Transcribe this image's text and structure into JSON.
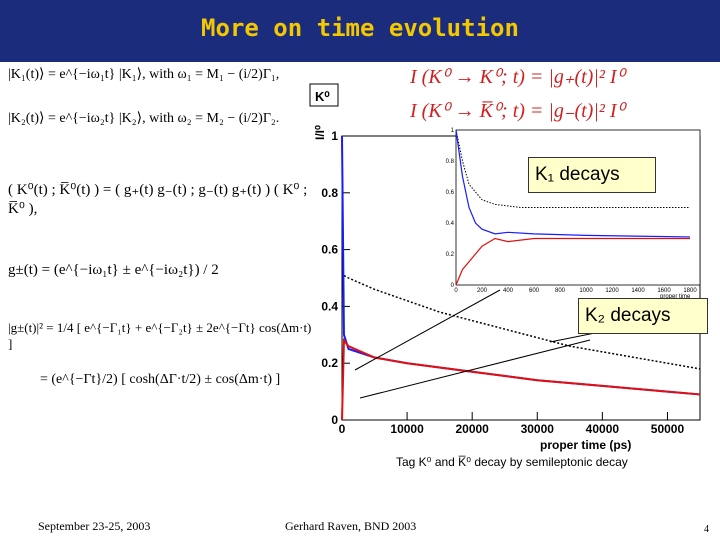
{
  "slide": {
    "title": "More on time evolution",
    "footer_left": "September 23-25, 2003",
    "footer_center": "Gerhard Raven, BND 2003",
    "page_number": "4",
    "caption": "Tag K⁰ and K̅⁰ decay by semileptonic decay",
    "eq_top1": "I (K⁰ → K⁰; t) = |g₊(t)|² I⁰",
    "eq_top2": "I (K⁰ → K̅⁰; t) = |g₋(t)|² I⁰",
    "eq_left": [
      "|K₁(t)⟩ = e^{−iω₁t} |K₁⟩, with ω₁ = M₁ − (i/2)Γ₁,",
      "|K₂(t)⟩ = e^{−iω₂t} |K₂⟩, with ω₂ = M₂ − (i/2)Γ₂.",
      "( K⁰(t) ; K̅⁰(t) ) = ( g₊(t) g₋(t) ; g₋(t) g₊(t) ) ( K⁰ ; K̅⁰ ),",
      "g±(t) = (e^{−iω₁t} ± e^{−iω₂t}) / 2",
      "|g±(t)|² = 1/4 [ e^{−Γ₁t} + e^{−Γ₂t} ± 2e^{−Γt} cos(Δm·t) ]",
      "= (e^{−Γt}/2) [ cosh(ΔΓ·t/2) ± cos(Δm·t) ]"
    ],
    "callout_k1": "K₁ decays",
    "callout_k2": "K₂ decays",
    "colors": {
      "title_bg": "#1c2c7c",
      "title_text": "#f3c800",
      "eq_red": "#d02020"
    }
  },
  "chart_data": {
    "type": "line",
    "legend_label": "K⁰",
    "ylabel": "I/I⁰",
    "xlabel": "proper time (ps)",
    "xlim": [
      0,
      55000
    ],
    "ylim": [
      0,
      1.0
    ],
    "x_ticks": [
      "0",
      "10000",
      "20000",
      "30000",
      "40000",
      "50000"
    ],
    "y_ticks": [
      "0",
      "0.2",
      "0.4",
      "0.6",
      "0.8",
      "1"
    ],
    "series": [
      {
        "color": "#000000",
        "style": "dotted",
        "x": [
          0,
          200,
          1000,
          5000,
          10000,
          15000,
          20000,
          25000,
          30000,
          35000,
          40000,
          45000,
          50000,
          55000
        ],
        "values": [
          1.0,
          0.51,
          0.5,
          0.46,
          0.42,
          0.38,
          0.35,
          0.32,
          0.29,
          0.26,
          0.24,
          0.22,
          0.2,
          0.18
        ]
      },
      {
        "color": "#1a1aff",
        "style": "solid",
        "x": [
          0,
          300,
          1000,
          5000,
          10000,
          20000,
          30000,
          40000,
          50000,
          55000
        ],
        "values": [
          1.0,
          0.3,
          0.25,
          0.22,
          0.2,
          0.17,
          0.14,
          0.12,
          0.1,
          0.09
        ]
      },
      {
        "color": "#e01010",
        "style": "solid",
        "x": [
          0,
          300,
          1000,
          5000,
          10000,
          20000,
          30000,
          40000,
          50000,
          55000
        ],
        "values": [
          0.0,
          0.28,
          0.26,
          0.22,
          0.2,
          0.17,
          0.14,
          0.12,
          0.1,
          0.09
        ]
      }
    ],
    "inset": {
      "xlabel": "proper time",
      "x_ticks": [
        "0",
        "200",
        "400",
        "600",
        "800",
        "1000",
        "1200",
        "1400",
        "1600",
        "1800"
      ],
      "y_ticks": [
        "0",
        "0.2",
        "0.4",
        "0.6",
        "0.8",
        "1"
      ],
      "series": [
        {
          "color": "#000000",
          "style": "dotted",
          "x": [
            0,
            50,
            100,
            200,
            300,
            500,
            1000,
            1800
          ],
          "values": [
            1.0,
            0.8,
            0.65,
            0.55,
            0.52,
            0.5,
            0.5,
            0.5
          ]
        },
        {
          "color": "#1a1aff",
          "style": "solid",
          "x": [
            0,
            50,
            100,
            150,
            200,
            300,
            400,
            600,
            1000,
            1800
          ],
          "values": [
            1.0,
            0.7,
            0.5,
            0.4,
            0.36,
            0.33,
            0.34,
            0.33,
            0.32,
            0.31
          ]
        },
        {
          "color": "#e01010",
          "style": "solid",
          "x": [
            0,
            50,
            100,
            150,
            200,
            300,
            400,
            600,
            1000,
            1800
          ],
          "values": [
            0.0,
            0.1,
            0.15,
            0.2,
            0.25,
            0.3,
            0.28,
            0.3,
            0.3,
            0.3
          ]
        }
      ]
    }
  }
}
